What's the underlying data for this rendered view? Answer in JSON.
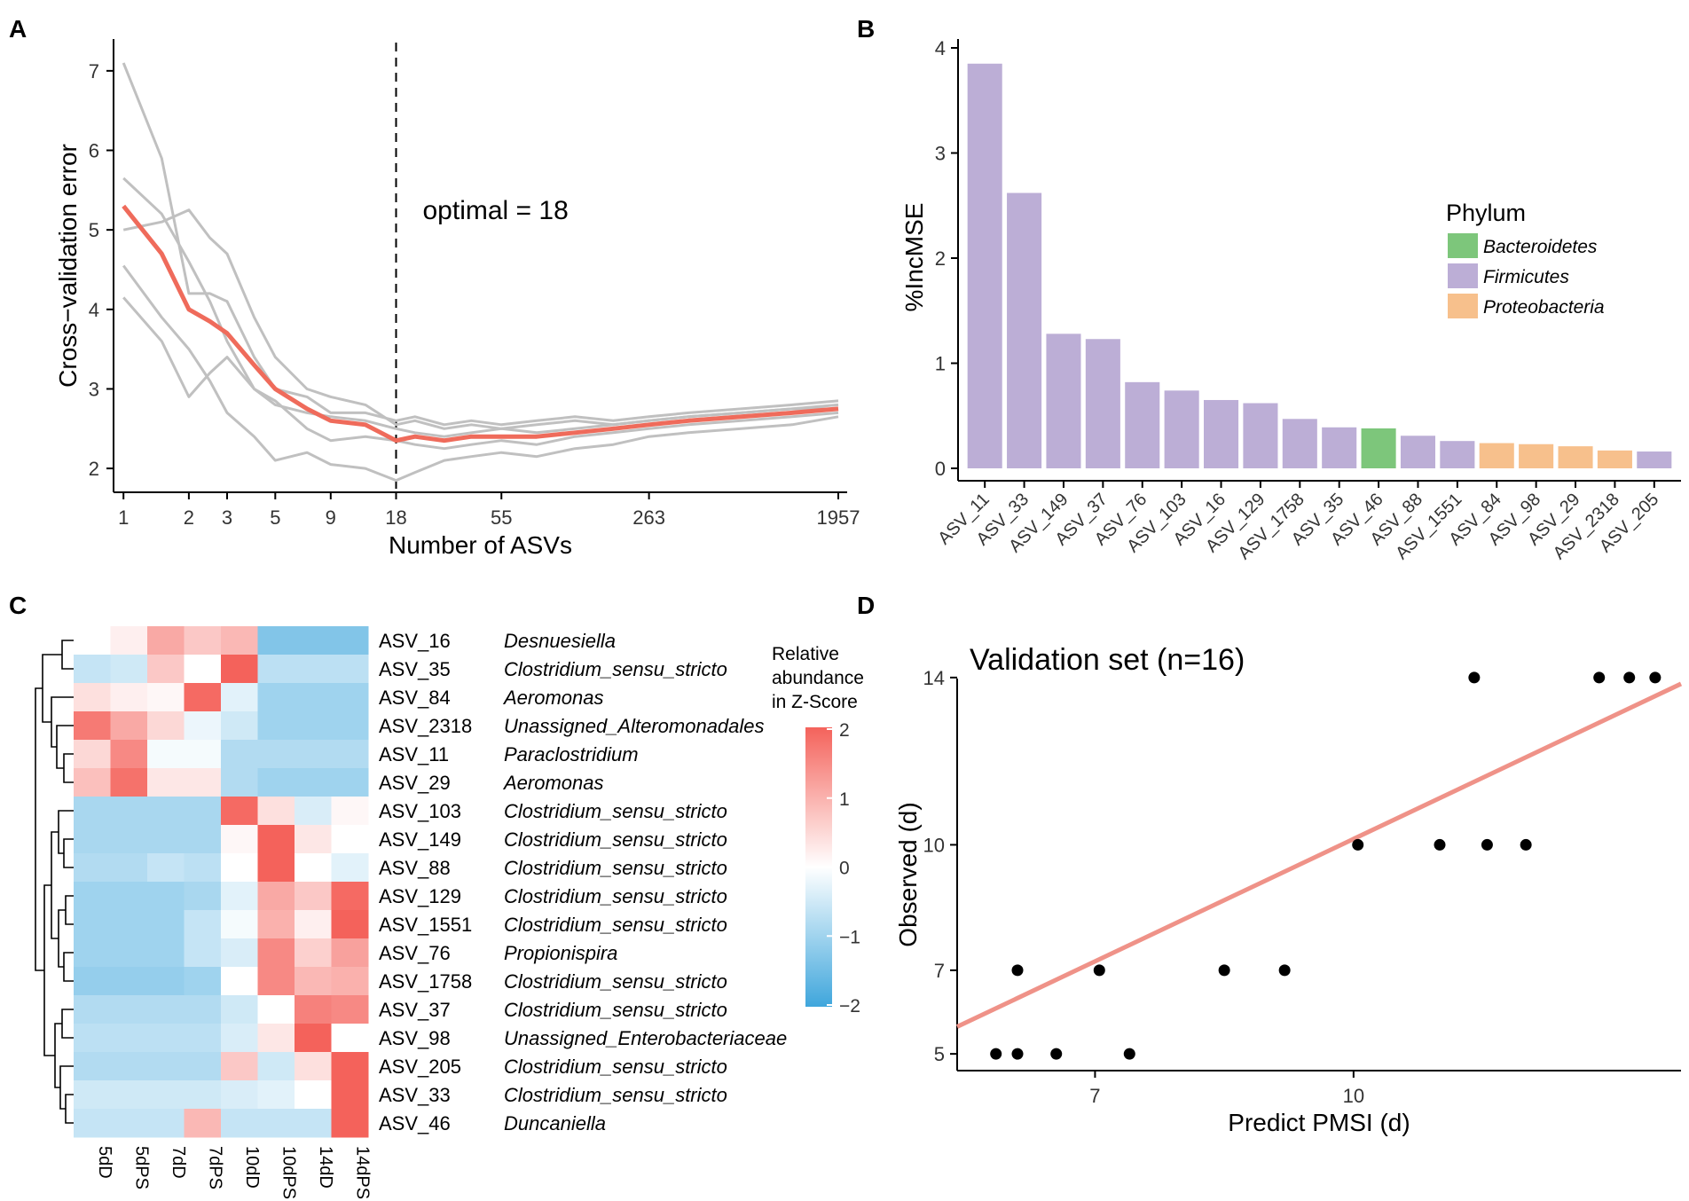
{
  "chart_data": [
    {
      "panel": "A",
      "type": "line",
      "xlabel": "Number of ASVs",
      "ylabel": "Cross−validation error",
      "x_scale": "log",
      "xlim": [
        0.9,
        2150
      ],
      "ylim": [
        1.7,
        7.4
      ],
      "x_ticks": [
        1,
        2,
        3,
        5,
        9,
        18,
        55,
        263,
        1957
      ],
      "x_tick_labels": [
        "1",
        "2",
        "3",
        "5",
        "9",
        "18",
        "55",
        "263",
        "1957"
      ],
      "y_ticks": [
        2,
        3,
        4,
        5,
        6,
        7
      ],
      "y_tick_labels": [
        "2",
        "3",
        "4",
        "5",
        "6",
        "7"
      ],
      "annotation": "optimal = 18",
      "vline_x": 18,
      "series": [
        {
          "name": "cv run 1",
          "color": "#c0c0c0",
          "points": [
            [
              1,
              7.1
            ],
            [
              1.5,
              5.9
            ],
            [
              2,
              4.2
            ],
            [
              2.5,
              4.2
            ],
            [
              3,
              4.1
            ],
            [
              4,
              3.4
            ],
            [
              5,
              3.0
            ],
            [
              7,
              2.9
            ],
            [
              9,
              2.7
            ],
            [
              13,
              2.7
            ],
            [
              18,
              2.6
            ],
            [
              22,
              2.65
            ],
            [
              30,
              2.55
            ],
            [
              40,
              2.6
            ],
            [
              55,
              2.55
            ],
            [
              80,
              2.6
            ],
            [
              120,
              2.65
            ],
            [
              180,
              2.6
            ],
            [
              263,
              2.65
            ],
            [
              400,
              2.7
            ],
            [
              700,
              2.75
            ],
            [
              1200,
              2.8
            ],
            [
              1957,
              2.85
            ]
          ]
        },
        {
          "name": "cv run 2",
          "color": "#c0c0c0",
          "points": [
            [
              1,
              5.65
            ],
            [
              1.5,
              5.2
            ],
            [
              2,
              4.6
            ],
            [
              2.5,
              4.1
            ],
            [
              3,
              3.6
            ],
            [
              4,
              3.0
            ],
            [
              5,
              2.8
            ],
            [
              7,
              2.7
            ],
            [
              9,
              2.65
            ],
            [
              13,
              2.6
            ],
            [
              18,
              2.5
            ],
            [
              22,
              2.45
            ],
            [
              30,
              2.4
            ],
            [
              40,
              2.45
            ],
            [
              55,
              2.5
            ],
            [
              80,
              2.45
            ],
            [
              120,
              2.5
            ],
            [
              180,
              2.55
            ],
            [
              263,
              2.6
            ],
            [
              400,
              2.65
            ],
            [
              700,
              2.7
            ],
            [
              1200,
              2.75
            ],
            [
              1957,
              2.8
            ]
          ]
        },
        {
          "name": "cv run 3",
          "color": "#c0c0c0",
          "points": [
            [
              1,
              5.0
            ],
            [
              1.5,
              5.1
            ],
            [
              2,
              5.25
            ],
            [
              2.5,
              4.9
            ],
            [
              3,
              4.7
            ],
            [
              4,
              3.9
            ],
            [
              5,
              3.4
            ],
            [
              7,
              3.0
            ],
            [
              9,
              2.9
            ],
            [
              13,
              2.8
            ],
            [
              18,
              2.55
            ],
            [
              22,
              2.6
            ],
            [
              30,
              2.5
            ],
            [
              40,
              2.55
            ],
            [
              55,
              2.5
            ],
            [
              80,
              2.55
            ],
            [
              120,
              2.6
            ],
            [
              180,
              2.55
            ],
            [
              263,
              2.6
            ],
            [
              400,
              2.65
            ],
            [
              700,
              2.7
            ],
            [
              1200,
              2.75
            ],
            [
              1957,
              2.75
            ]
          ]
        },
        {
          "name": "cv run 4",
          "color": "#c0c0c0",
          "points": [
            [
              1,
              4.55
            ],
            [
              1.5,
              3.9
            ],
            [
              2,
              3.5
            ],
            [
              2.5,
              3.1
            ],
            [
              3,
              2.7
            ],
            [
              4,
              2.4
            ],
            [
              5,
              2.1
            ],
            [
              7,
              2.2
            ],
            [
              9,
              2.05
            ],
            [
              13,
              2.0
            ],
            [
              18,
              1.85
            ],
            [
              22,
              1.95
            ],
            [
              30,
              2.1
            ],
            [
              40,
              2.15
            ],
            [
              55,
              2.2
            ],
            [
              80,
              2.15
            ],
            [
              120,
              2.25
            ],
            [
              180,
              2.3
            ],
            [
              263,
              2.4
            ],
            [
              400,
              2.45
            ],
            [
              700,
              2.5
            ],
            [
              1200,
              2.55
            ],
            [
              1957,
              2.65
            ]
          ]
        },
        {
          "name": "cv run 5",
          "color": "#c0c0c0",
          "points": [
            [
              1,
              4.15
            ],
            [
              1.5,
              3.6
            ],
            [
              2,
              2.9
            ],
            [
              2.5,
              3.2
            ],
            [
              3,
              3.4
            ],
            [
              4,
              3.0
            ],
            [
              5,
              2.85
            ],
            [
              7,
              2.5
            ],
            [
              9,
              2.35
            ],
            [
              13,
              2.4
            ],
            [
              18,
              2.35
            ],
            [
              22,
              2.3
            ],
            [
              30,
              2.25
            ],
            [
              40,
              2.3
            ],
            [
              55,
              2.35
            ],
            [
              80,
              2.3
            ],
            [
              120,
              2.4
            ],
            [
              180,
              2.45
            ],
            [
              263,
              2.5
            ],
            [
              400,
              2.55
            ],
            [
              700,
              2.6
            ],
            [
              1200,
              2.65
            ],
            [
              1957,
              2.7
            ]
          ]
        },
        {
          "name": "mean",
          "color": "#ef6b5b",
          "points": [
            [
              1,
              5.3
            ],
            [
              1.5,
              4.7
            ],
            [
              2,
              4.0
            ],
            [
              2.5,
              3.85
            ],
            [
              3,
              3.7
            ],
            [
              4,
              3.3
            ],
            [
              5,
              3.0
            ],
            [
              7,
              2.75
            ],
            [
              9,
              2.6
            ],
            [
              13,
              2.55
            ],
            [
              18,
              2.35
            ],
            [
              22,
              2.4
            ],
            [
              30,
              2.35
            ],
            [
              40,
              2.4
            ],
            [
              55,
              2.4
            ],
            [
              80,
              2.4
            ],
            [
              120,
              2.45
            ],
            [
              180,
              2.5
            ],
            [
              263,
              2.55
            ],
            [
              400,
              2.6
            ],
            [
              700,
              2.65
            ],
            [
              1200,
              2.7
            ],
            [
              1957,
              2.75
            ]
          ]
        }
      ]
    },
    {
      "panel": "B",
      "type": "bar",
      "ylabel": "%IncMSE",
      "ylim": [
        0,
        4
      ],
      "y_ticks": [
        0,
        1,
        2,
        3,
        4
      ],
      "y_tick_labels": [
        "0",
        "1",
        "2",
        "3",
        "4"
      ],
      "categories": [
        "ASV_11",
        "ASV_33",
        "ASV_149",
        "ASV_37",
        "ASV_76",
        "ASV_103",
        "ASV_16",
        "ASV_129",
        "ASV_1758",
        "ASV_35",
        "ASV_46",
        "ASV_88",
        "ASV_1551",
        "ASV_84",
        "ASV_98",
        "ASV_29",
        "ASV_2318",
        "ASV_205"
      ],
      "values": [
        3.85,
        2.62,
        1.28,
        1.23,
        0.82,
        0.74,
        0.65,
        0.62,
        0.47,
        0.39,
        0.38,
        0.31,
        0.26,
        0.24,
        0.23,
        0.21,
        0.17,
        0.16
      ],
      "phylum": [
        "Firmicutes",
        "Firmicutes",
        "Firmicutes",
        "Firmicutes",
        "Firmicutes",
        "Firmicutes",
        "Firmicutes",
        "Firmicutes",
        "Firmicutes",
        "Firmicutes",
        "Bacteroidetes",
        "Firmicutes",
        "Firmicutes",
        "Proteobacteria",
        "Proteobacteria",
        "Proteobacteria",
        "Proteobacteria",
        "Firmicutes"
      ],
      "legend_title": "Phylum",
      "legend": [
        {
          "name": "Bacteroidetes",
          "color": "#7dc67b"
        },
        {
          "name": "Firmicutes",
          "color": "#bcaed6"
        },
        {
          "name": "Proteobacteria",
          "color": "#f7c08c"
        }
      ],
      "legend_position": "right"
    },
    {
      "panel": "C",
      "type": "heatmap",
      "columns": [
        "5dD",
        "5dPS",
        "7dD",
        "7dPS",
        "10dD",
        "10dPS",
        "14dD",
        "14dPS"
      ],
      "rows": [
        "ASV_16",
        "ASV_35",
        "ASV_84",
        "ASV_2318",
        "ASV_11",
        "ASV_29",
        "ASV_103",
        "ASV_149",
        "ASV_88",
        "ASV_129",
        "ASV_1551",
        "ASV_76",
        "ASV_1758",
        "ASV_37",
        "ASV_98",
        "ASV_205",
        "ASV_33",
        "ASV_46"
      ],
      "taxa": [
        "Desnuesiella",
        "Clostridium_sensu_stricto",
        "Aeromonas",
        "Unassigned_Alteromonadales",
        "Paraclostridium",
        "Aeromonas",
        "Clostridium_sensu_stricto",
        "Clostridium_sensu_stricto",
        "Clostridium_sensu_stricto",
        "Clostridium_sensu_stricto",
        "Clostridium_sensu_stricto",
        "Propionispira",
        "Clostridium_sensu_stricto",
        "Clostridium_sensu_stricto",
        "Unassigned_Enterobacteriaceae",
        "Clostridium_sensu_stricto",
        "Clostridium_sensu_stricto",
        "Duncaniella"
      ],
      "values": [
        [
          0.0,
          0.2,
          1.1,
          0.7,
          0.9,
          -1.3,
          -1.3,
          -1.3
        ],
        [
          -0.6,
          -0.5,
          0.7,
          0.0,
          2.0,
          -0.7,
          -0.7,
          -0.7
        ],
        [
          0.4,
          0.2,
          0.1,
          1.9,
          -0.3,
          -1.0,
          -1.0,
          -1.0
        ],
        [
          1.7,
          1.1,
          0.5,
          -0.2,
          -0.5,
          -1.0,
          -1.0,
          -1.0
        ],
        [
          0.5,
          1.5,
          -0.1,
          -0.1,
          -0.8,
          -0.8,
          -0.8,
          -0.8
        ],
        [
          0.8,
          1.8,
          0.3,
          0.3,
          -0.8,
          -1.0,
          -1.0,
          -1.0
        ],
        [
          -0.9,
          -0.9,
          -0.9,
          -0.9,
          1.9,
          0.4,
          -0.4,
          0.1
        ],
        [
          -0.9,
          -0.9,
          -0.9,
          -0.9,
          0.1,
          2.0,
          0.3,
          0.0
        ],
        [
          -0.8,
          -0.8,
          -0.6,
          -0.7,
          0.0,
          2.0,
          0.0,
          -0.3
        ],
        [
          -1.0,
          -1.0,
          -1.0,
          -0.9,
          -0.3,
          1.1,
          0.7,
          1.9
        ],
        [
          -1.0,
          -1.0,
          -1.0,
          -0.6,
          -0.1,
          1.0,
          0.2,
          2.0
        ],
        [
          -1.0,
          -1.0,
          -1.0,
          -0.6,
          -0.4,
          1.5,
          0.6,
          1.2
        ],
        [
          -1.1,
          -1.1,
          -1.1,
          -1.0,
          0.0,
          1.5,
          0.9,
          1.0
        ],
        [
          -0.8,
          -0.8,
          -0.8,
          -0.8,
          -0.5,
          0.0,
          1.6,
          1.5
        ],
        [
          -0.7,
          -0.7,
          -0.7,
          -0.7,
          -0.4,
          0.3,
          2.0,
          0.0
        ],
        [
          -0.8,
          -0.8,
          -0.8,
          -0.8,
          0.7,
          -0.5,
          0.4,
          2.0
        ],
        [
          -0.5,
          -0.5,
          -0.5,
          -0.5,
          -0.4,
          -0.3,
          0.0,
          2.0
        ],
        [
          -0.6,
          -0.6,
          -0.6,
          0.9,
          -0.6,
          -0.6,
          -0.6,
          2.0
        ]
      ],
      "color_range": [
        -2,
        2
      ],
      "colorbar_title": [
        "Relative",
        "abundance",
        "in Z-Score"
      ],
      "colorbar_ticks": [
        2,
        1,
        0,
        -1,
        -2
      ],
      "colorbar_tick_labels": [
        "2",
        "1",
        "0",
        "−1",
        "−2"
      ],
      "colors": {
        "low": "#3fa6dc",
        "mid": "#ffffff",
        "high": "#f4625b"
      }
    },
    {
      "panel": "D",
      "type": "scatter",
      "title": "Validation set (n=16)",
      "xlabel": "Predict PMSI (d)",
      "ylabel": "Observed (d)",
      "xlim": [
        5.4,
        13.8
      ],
      "ylim": [
        4.6,
        14.4
      ],
      "x_ticks": [
        7,
        10
      ],
      "x_tick_labels": [
        "7",
        "10"
      ],
      "y_ticks": [
        5,
        7,
        10,
        14
      ],
      "y_tick_labels": [
        "5",
        "7",
        "10",
        "14"
      ],
      "points": [
        [
          5.85,
          5
        ],
        [
          6.1,
          5
        ],
        [
          6.1,
          7
        ],
        [
          6.55,
          5
        ],
        [
          7.05,
          7
        ],
        [
          7.4,
          5
        ],
        [
          8.5,
          7
        ],
        [
          9.2,
          7
        ],
        [
          10.05,
          10
        ],
        [
          11.0,
          10
        ],
        [
          11.55,
          10
        ],
        [
          12.0,
          10
        ],
        [
          11.4,
          14
        ],
        [
          12.85,
          14
        ],
        [
          13.2,
          14
        ],
        [
          13.5,
          14
        ]
      ],
      "fit_line": [
        [
          5.4,
          5.65
        ],
        [
          13.8,
          13.85
        ]
      ],
      "fit_color": "#ef9288"
    }
  ],
  "panel_labels": [
    "A",
    "B",
    "C",
    "D"
  ]
}
